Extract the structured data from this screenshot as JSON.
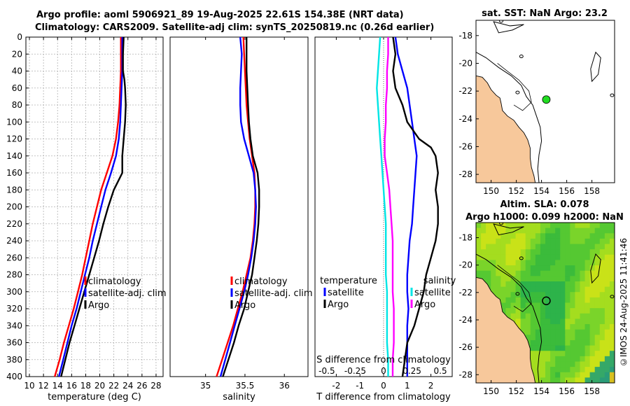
{
  "title_line1": "Argo profile: aoml 5906921_89 19-Aug-2025 22.61S 154.38E (NRT data)",
  "title_line2": "Climatology: CARS2009. Satellite-adj clim: synTS_20250819.nc (0.26d earlier)",
  "side_label": "©IMOS 24-Aug-2025 11:41:46",
  "colors": {
    "climatology": "#ff0000",
    "satellite": "#0000ff",
    "argo": "#000000",
    "s_satellite": "#00e5e5",
    "s_argo": "#ff00ff",
    "land": "#f7c89b",
    "grid": "#b0b0b0",
    "point_green": "#22dd22",
    "zero_line": "#666666"
  },
  "chart_data": [
    {
      "type": "line",
      "name": "temperature-profile",
      "xlabel": "temperature (deg C)",
      "ylabel": "",
      "xlim": [
        9.5,
        29
      ],
      "ylim": [
        400,
        0
      ],
      "grid": true,
      "xticks": [
        10,
        12,
        14,
        16,
        18,
        20,
        22,
        24,
        26,
        28
      ],
      "yticks": [
        0,
        20,
        40,
        60,
        80,
        100,
        120,
        140,
        160,
        180,
        200,
        220,
        240,
        260,
        280,
        300,
        320,
        340,
        360,
        380,
        400
      ],
      "legend": [
        "climatology",
        "satellite-adj. clim",
        "Argo"
      ],
      "series": [
        {
          "name": "climatology",
          "color": "climatology",
          "depth": [
            0,
            20,
            40,
            60,
            80,
            100,
            120,
            140,
            160,
            180,
            200,
            220,
            240,
            260,
            280,
            300,
            320,
            340,
            360,
            380,
            400
          ],
          "values": [
            23.0,
            23.0,
            23.0,
            22.9,
            22.8,
            22.6,
            22.3,
            21.8,
            21.0,
            20.2,
            19.6,
            19.0,
            18.5,
            18.0,
            17.5,
            16.9,
            16.3,
            15.6,
            14.9,
            14.3,
            13.6
          ]
        },
        {
          "name": "satellite-adj. clim",
          "color": "satellite",
          "depth": [
            0,
            20,
            40,
            60,
            80,
            100,
            120,
            140,
            160,
            180,
            200,
            220,
            240,
            260,
            280,
            300,
            320,
            340,
            360,
            380,
            400
          ],
          "values": [
            23.2,
            23.2,
            23.2,
            23.1,
            23.0,
            22.9,
            22.7,
            22.3,
            21.6,
            20.8,
            20.2,
            19.6,
            19.0,
            18.5,
            17.9,
            17.3,
            16.7,
            16.0,
            15.4,
            14.8,
            14.2
          ]
        },
        {
          "name": "Argo",
          "color": "argo",
          "depth": [
            0,
            20,
            40,
            50,
            60,
            80,
            100,
            120,
            140,
            160,
            180,
            200,
            220,
            240,
            260,
            280,
            300,
            320,
            340,
            360,
            380,
            400
          ],
          "values": [
            23.4,
            23.3,
            23.3,
            23.5,
            23.6,
            23.7,
            23.6,
            23.4,
            23.2,
            23.2,
            22.0,
            21.2,
            20.5,
            19.9,
            19.2,
            18.5,
            17.8,
            17.1,
            16.4,
            15.7,
            15.1,
            14.5
          ]
        }
      ]
    },
    {
      "type": "line",
      "name": "salinity-profile",
      "xlabel": "salinity",
      "ylabel": "",
      "xlim": [
        34.55,
        36.3
      ],
      "ylim": [
        400,
        0
      ],
      "grid": false,
      "xticks": [
        35,
        35.5,
        36
      ],
      "legend": [
        "climatology",
        "satellite-adj. clim",
        "Argo"
      ],
      "series": [
        {
          "name": "climatology",
          "color": "climatology",
          "depth": [
            0,
            20,
            40,
            60,
            80,
            100,
            120,
            140,
            160,
            180,
            200,
            220,
            240,
            260,
            280,
            300,
            320,
            340,
            360,
            380,
            400
          ],
          "values": [
            35.48,
            35.49,
            35.5,
            35.51,
            35.52,
            35.54,
            35.56,
            35.59,
            35.62,
            35.63,
            35.63,
            35.62,
            35.6,
            35.57,
            35.52,
            35.47,
            35.41,
            35.35,
            35.28,
            35.21,
            35.14
          ]
        },
        {
          "name": "satellite-adj. clim",
          "color": "satellite",
          "depth": [
            0,
            20,
            40,
            60,
            80,
            100,
            120,
            140,
            160,
            180,
            200,
            220,
            240,
            260,
            280,
            300,
            320,
            340,
            360,
            380,
            400
          ],
          "values": [
            35.44,
            35.46,
            35.45,
            35.44,
            35.44,
            35.45,
            35.49,
            35.55,
            35.61,
            35.63,
            35.64,
            35.63,
            35.61,
            35.58,
            35.54,
            35.49,
            35.43,
            35.37,
            35.31,
            35.25,
            35.19
          ]
        },
        {
          "name": "Argo",
          "color": "argo",
          "depth": [
            0,
            20,
            40,
            60,
            80,
            100,
            120,
            140,
            160,
            180,
            200,
            220,
            240,
            260,
            280,
            300,
            320,
            340,
            360,
            380,
            400
          ],
          "values": [
            35.52,
            35.52,
            35.52,
            35.53,
            35.54,
            35.55,
            35.57,
            35.6,
            35.66,
            35.68,
            35.68,
            35.67,
            35.65,
            35.62,
            35.59,
            35.54,
            35.49,
            35.42,
            35.36,
            35.29,
            35.22
          ]
        }
      ]
    },
    {
      "type": "line",
      "name": "difference-profile",
      "xlabel": "T difference from climatology",
      "top_label": "S difference from climatology",
      "xlim": [
        -2.9,
        2.9
      ],
      "ylim": [
        400,
        0
      ],
      "grid": false,
      "xticks": [
        -2,
        -1,
        0,
        1,
        2
      ],
      "sticks": [
        -0.5,
        -0.25,
        0,
        0.25,
        0.5
      ],
      "stick_labels": [
        "-0.5",
        "-0.25",
        "0",
        "0.25",
        "0.5"
      ],
      "s_scale": 2.4,
      "legend_t_title": "temperature",
      "legend_s_title": "salinity",
      "legend_t": [
        "satellite",
        "Argo"
      ],
      "legend_s": [
        "satellite",
        "Argo"
      ],
      "series": [
        {
          "name": "T satellite",
          "color": "satellite",
          "depth": [
            0,
            20,
            40,
            60,
            80,
            100,
            120,
            140,
            160,
            180,
            200,
            220,
            240,
            260,
            280,
            300,
            320,
            340,
            360,
            380,
            400
          ],
          "values": [
            0.5,
            0.6,
            0.8,
            1.0,
            1.1,
            1.2,
            1.3,
            1.4,
            1.35,
            1.3,
            1.25,
            1.2,
            1.1,
            1.05,
            1.0,
            1.0,
            1.05,
            1.0,
            1.0,
            1.0,
            1.0
          ]
        },
        {
          "name": "T Argo",
          "color": "argo",
          "depth": [
            0,
            20,
            40,
            60,
            80,
            100,
            120,
            130,
            140,
            160,
            180,
            200,
            220,
            240,
            260,
            280,
            300,
            320,
            340,
            360,
            380,
            400
          ],
          "values": [
            0.4,
            0.5,
            0.4,
            0.5,
            0.8,
            1.0,
            1.5,
            2.0,
            2.2,
            2.3,
            2.2,
            2.3,
            2.3,
            2.2,
            2.0,
            1.8,
            1.7,
            1.5,
            1.3,
            1.0,
            0.9,
            0.8
          ]
        },
        {
          "name": "S satellite",
          "color": "s_satellite",
          "depth": [
            0,
            20,
            40,
            60,
            80,
            100,
            120,
            140,
            160,
            180,
            200,
            220,
            240,
            260,
            280,
            300,
            320,
            340,
            360,
            380,
            400
          ],
          "values": [
            -0.03,
            -0.04,
            -0.05,
            -0.06,
            -0.05,
            -0.04,
            -0.03,
            -0.02,
            -0.01,
            0.0,
            0.01,
            0.02,
            0.02,
            0.02,
            0.02,
            0.03,
            0.03,
            0.03,
            0.03,
            0.04,
            0.04
          ]
        },
        {
          "name": "S Argo",
          "color": "s_argo",
          "depth": [
            0,
            20,
            40,
            60,
            80,
            100,
            120,
            140,
            160,
            180,
            200,
            220,
            240,
            260,
            280,
            300,
            320,
            340,
            360,
            380,
            400
          ],
          "values": [
            0.04,
            0.04,
            0.03,
            0.03,
            0.02,
            0.02,
            0.01,
            0.01,
            0.03,
            0.05,
            0.06,
            0.07,
            0.08,
            0.08,
            0.08,
            0.08,
            0.09,
            0.09,
            0.09,
            0.08,
            0.08
          ]
        }
      ]
    },
    {
      "type": "map",
      "name": "sst-map",
      "title": "sat. SST: NaN Argo: 23.2",
      "xlim": [
        148.8,
        159.8
      ],
      "ylim": [
        -28.6,
        -16.9
      ],
      "xticks": [
        150,
        152,
        154,
        156,
        158
      ],
      "yticks": [
        -18,
        -20,
        -22,
        -24,
        -26,
        -28
      ],
      "float_position": [
        154.38,
        -22.61
      ]
    },
    {
      "type": "heatmap",
      "name": "sla-map",
      "title_line1": "Altim. SLA: 0.078",
      "title_line2": "Argo h1000: 0.099 h2000: NaN",
      "xlim": [
        148.8,
        159.8
      ],
      "ylim": [
        -28.6,
        -16.9
      ],
      "xticks": [
        150,
        152,
        154,
        156,
        158
      ],
      "yticks": [
        -18,
        -20,
        -22,
        -24,
        -26,
        -28
      ],
      "float_position": [
        154.38,
        -22.61
      ]
    }
  ]
}
